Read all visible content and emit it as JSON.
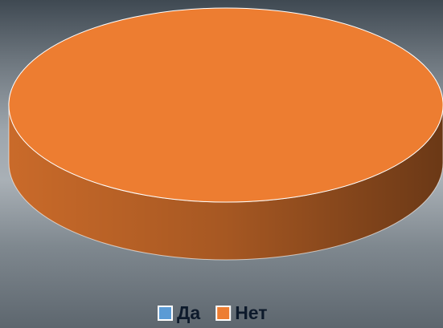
{
  "chart_data": {
    "type": "pie",
    "categories": [
      "Да",
      "Нет"
    ],
    "values": [
      0,
      100
    ],
    "colors": [
      "#5b9bd5",
      "#ed7d31"
    ],
    "legend": "bottom"
  }
}
